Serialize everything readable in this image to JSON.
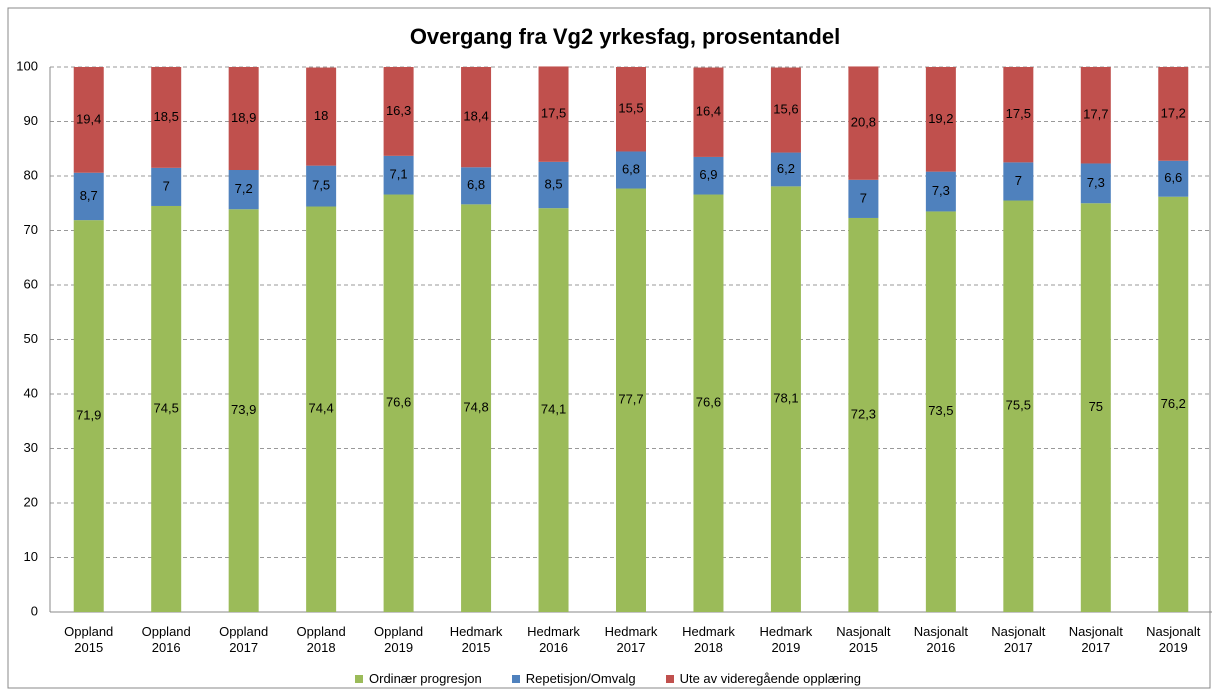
{
  "chart_data": {
    "type": "stacked_bar",
    "title": "Overgang fra Vg2 yrkesfag, prosentandel",
    "categories": [
      "Oppland 2015",
      "Oppland 2016",
      "Oppland 2017",
      "Oppland 2018",
      "Oppland 2019",
      "Hedmark 2015",
      "Hedmark 2016",
      "Hedmark 2017",
      "Hedmark 2018",
      "Hedmark 2019",
      "Nasjonalt 2015",
      "Nasjonalt 2016",
      "Nasjonalt 2017",
      "Nasjonalt 2017",
      "Nasjonalt 2019"
    ],
    "series": [
      {
        "name": "Ordinær progresjon",
        "color": "#9bbb59",
        "values": [
          71.9,
          74.5,
          73.9,
          74.4,
          76.6,
          74.8,
          74.1,
          77.7,
          76.6,
          78.1,
          72.3,
          73.5,
          75.5,
          75,
          76.2
        ],
        "value_labels": [
          "71,9",
          "74,5",
          "73,9",
          "74,4",
          "76,6",
          "74,8",
          "74,1",
          "77,7",
          "76,6",
          "78,1",
          "72,3",
          "73,5",
          "75,5",
          "75",
          "76,2"
        ]
      },
      {
        "name": "Repetisjon/Omvalg",
        "color": "#4f81bd",
        "values": [
          8.7,
          7,
          7.2,
          7.5,
          7.1,
          6.8,
          8.5,
          6.8,
          6.9,
          6.2,
          7,
          7.3,
          7,
          7.3,
          6.6
        ],
        "value_labels": [
          "8,7",
          "7",
          "7,2",
          "7,5",
          "7,1",
          "6,8",
          "8,5",
          "6,8",
          "6,9",
          "6,2",
          "7",
          "7,3",
          "7",
          "7,3",
          "6,6"
        ]
      },
      {
        "name": "Ute av videregående opplæring",
        "color": "#c0504d",
        "values": [
          19.4,
          18.5,
          18.9,
          18,
          16.3,
          18.4,
          17.5,
          15.5,
          16.4,
          15.6,
          20.8,
          19.2,
          17.5,
          17.7,
          17.2
        ],
        "value_labels": [
          "19,4",
          "18,5",
          "18,9",
          "18",
          "16,3",
          "18,4",
          "17,5",
          "15,5",
          "16,4",
          "15,6",
          "20,8",
          "19,2",
          "17,5",
          "17,7",
          "17,2"
        ]
      }
    ],
    "ylim": [
      0,
      100
    ],
    "yticks": [
      0,
      10,
      20,
      30,
      40,
      50,
      60,
      70,
      80,
      90,
      100
    ],
    "grid": true,
    "legend": "bottom"
  }
}
